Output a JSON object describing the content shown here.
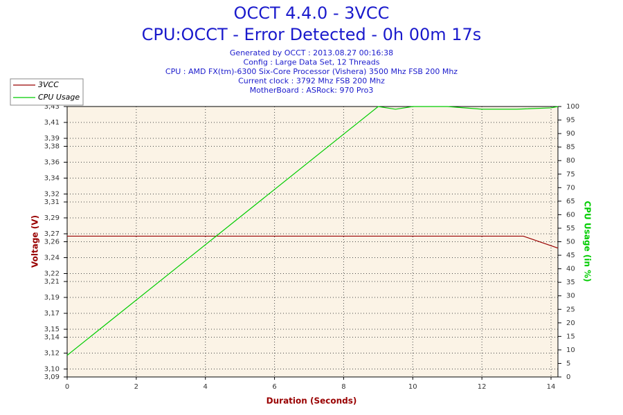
{
  "chart_data": {
    "type": "line",
    "title": "OCCT 4.4.0 - 3VCC",
    "subtitle": "CPU:OCCT - Error Detected - 0h 00m 17s",
    "info": [
      "Generated by OCCT : 2013.08.27 00:16:38",
      "Config : Large Data Set, 12 Threads",
      "CPU : AMD FX(tm)-6300 Six-Core Processor (Vishera) 3500 Mhz FSB 200 Mhz",
      "Current clock : 3792 Mhz FSB 200 Mhz",
      "MotherBoard : ASRock: 970 Pro3"
    ],
    "xlabel": "Duration (Seconds)",
    "ylabel": "Voltage (V)",
    "y2label": "CPU Usage (in %)",
    "grid": true,
    "legend": "top-left",
    "xlim": [
      0,
      14.2
    ],
    "xticks": [
      0,
      2,
      4,
      6,
      8,
      10,
      12,
      14
    ],
    "ylim": [
      3.09,
      3.43
    ],
    "yticks": [
      {
        "value": 3.43,
        "label": "3,43"
      },
      {
        "value": 3.41,
        "label": "3,41"
      },
      {
        "value": 3.39,
        "label": "3,39"
      },
      {
        "value": 3.38,
        "label": "3,38"
      },
      {
        "value": 3.36,
        "label": "3,36"
      },
      {
        "value": 3.34,
        "label": "3,34"
      },
      {
        "value": 3.32,
        "label": "3,32"
      },
      {
        "value": 3.31,
        "label": "3,31"
      },
      {
        "value": 3.29,
        "label": "3,29"
      },
      {
        "value": 3.27,
        "label": "3,27"
      },
      {
        "value": 3.26,
        "label": "3,26"
      },
      {
        "value": 3.24,
        "label": "3,24"
      },
      {
        "value": 3.22,
        "label": "3,22"
      },
      {
        "value": 3.21,
        "label": "3,21"
      },
      {
        "value": 3.19,
        "label": "3,19"
      },
      {
        "value": 3.17,
        "label": "3,17"
      },
      {
        "value": 3.15,
        "label": "3,15"
      },
      {
        "value": 3.14,
        "label": "3,14"
      },
      {
        "value": 3.12,
        "label": "3,12"
      },
      {
        "value": 3.1,
        "label": "3,10"
      },
      {
        "value": 3.09,
        "label": "3,09"
      }
    ],
    "y2lim": [
      0,
      100
    ],
    "y2ticks": [
      0,
      5,
      10,
      15,
      20,
      25,
      30,
      35,
      40,
      45,
      50,
      55,
      60,
      65,
      70,
      75,
      80,
      85,
      90,
      95,
      100
    ],
    "series": [
      {
        "name": "3VCC",
        "color": "#990000",
        "x": [
          0,
          13.2,
          14.2
        ],
        "values": [
          3.267,
          3.267,
          3.252
        ]
      },
      {
        "name": "CPU Usage",
        "color": "#00cc00",
        "axis": "y2",
        "x": [
          0,
          9,
          9.5,
          10,
          11,
          12,
          13,
          14,
          14.2
        ],
        "values": [
          8,
          100,
          99,
          100,
          100,
          99,
          99,
          99.5,
          100
        ]
      }
    ]
  }
}
